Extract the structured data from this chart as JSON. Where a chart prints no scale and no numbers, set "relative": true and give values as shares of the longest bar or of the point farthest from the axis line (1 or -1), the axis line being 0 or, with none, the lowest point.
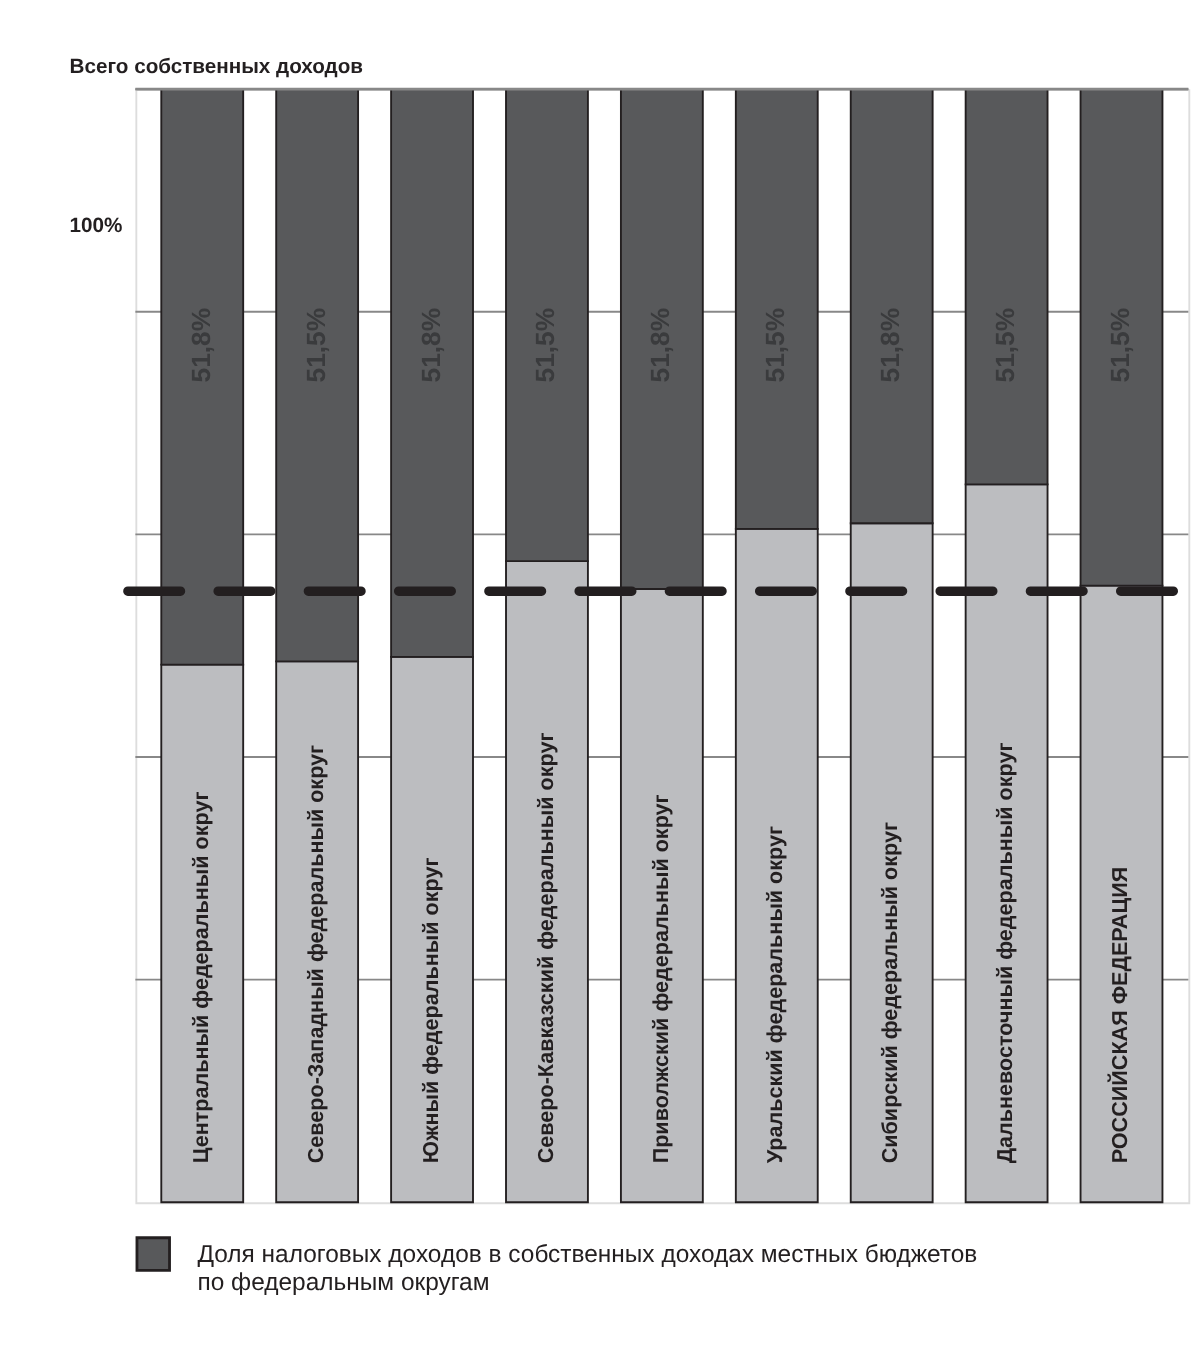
{
  "chart_data": {
    "type": "bar",
    "stacked": true,
    "relative": true,
    "title": "Всего собственных доходов",
    "categories": [
      "Центральный федеральный округ",
      "Северо-Западный федеральный округ",
      "Южный федеральный округ",
      "Северо-Кавказский федеральный округ",
      "Приволжский федеральный округ",
      "Уральский федеральный округ",
      "Сибирский федеральный округ",
      "Дальневосточный федеральный округ",
      "РОССИЙСКАЯ ФЕДЕРАЦИЯ"
    ],
    "series": [
      {
        "color": "#bcbdc0",
        "values": [
          0.483,
          0.486,
          0.49,
          0.576,
          0.551,
          0.605,
          0.61,
          0.645,
          0.554
        ]
      },
      {
        "name": "Доля налоговых доходов в собственных доходах местных бюджетов по федеральным округам",
        "color": "#58595b",
        "values": [
          0.517,
          0.514,
          0.51,
          0.424,
          0.449,
          0.395,
          0.39,
          0.355,
          0.446
        ]
      }
    ],
    "ref_lines": [
      {
        "axis": "y",
        "value": 0.549,
        "color": "#231f20",
        "line_style": "dashed"
      }
    ],
    "annotations": [
      "100%",
      "51,8%",
      "51,5%",
      "51,8%",
      "51,5%",
      "51,8%",
      "51,5%",
      "51,8%",
      "51,5%",
      "51,5%"
    ],
    "grid": true,
    "legend": "bottom left"
  }
}
